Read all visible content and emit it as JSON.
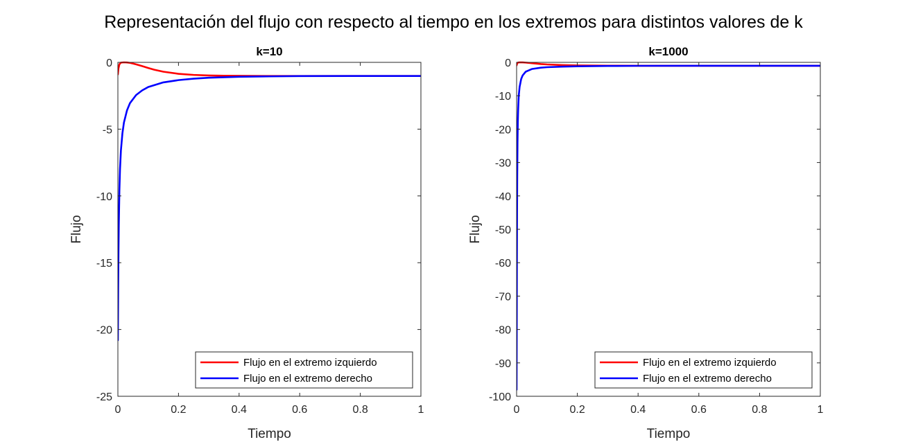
{
  "figure": {
    "suptitle": "Representación del flujo con respecto al tiempo en los extremos para distintos valores de k",
    "colors": {
      "background": "#ffffff",
      "axes": "#262626",
      "left_series": "#ff0000",
      "right_series": "#0000ff"
    }
  },
  "chart_data": [
    {
      "type": "line",
      "title": "k=10",
      "xlabel": "Tiempo",
      "ylabel": "Flujo",
      "xlim": [
        0,
        1
      ],
      "ylim": [
        -25,
        0
      ],
      "xticks": [
        0,
        0.2,
        0.4,
        0.6,
        0.8,
        1
      ],
      "xtick_labels": [
        "0",
        "0.2",
        "0.4",
        "0.6",
        "0.8",
        "1"
      ],
      "yticks": [
        -25,
        -20,
        -15,
        -10,
        -5,
        0
      ],
      "ytick_labels": [
        "-25",
        "-20",
        "-15",
        "-10",
        "-5",
        "0"
      ],
      "legend_position": "bottom-right",
      "series": [
        {
          "name": "Flujo en el extremo izquierdo",
          "color": "#ff0000",
          "x": [
            0,
            0.002,
            0.005,
            0.01,
            0.02,
            0.03,
            0.04,
            0.05,
            0.06,
            0.08,
            0.1,
            0.12,
            0.15,
            0.2,
            0.25,
            0.3,
            0.35,
            0.4,
            0.5,
            0.6,
            0.8,
            1
          ],
          "y": [
            -0.9,
            -0.45,
            -0.15,
            -0.02,
            0.0,
            -0.01,
            -0.04,
            -0.09,
            -0.15,
            -0.28,
            -0.42,
            -0.55,
            -0.7,
            -0.86,
            -0.94,
            -0.98,
            -1.0,
            -1.01,
            -1.02,
            -1.02,
            -1.02,
            -1.02
          ]
        },
        {
          "name": "Flujo en el extremo derecho",
          "color": "#0000ff",
          "x": [
            0,
            0.001,
            0.002,
            0.003,
            0.005,
            0.007,
            0.01,
            0.015,
            0.02,
            0.03,
            0.04,
            0.06,
            0.08,
            0.1,
            0.15,
            0.2,
            0.25,
            0.3,
            0.4,
            0.5,
            0.6,
            0.8,
            1
          ],
          "y": [
            -20.8,
            -17.0,
            -14.2,
            -12.2,
            -9.6,
            -8.0,
            -6.6,
            -5.3,
            -4.5,
            -3.6,
            -3.05,
            -2.45,
            -2.1,
            -1.85,
            -1.5,
            -1.33,
            -1.22,
            -1.15,
            -1.08,
            -1.05,
            -1.03,
            -1.02,
            -1.02
          ]
        }
      ]
    },
    {
      "type": "line",
      "title": "k=1000",
      "xlabel": "Tiempo",
      "ylabel": "Flujo",
      "xlim": [
        0,
        1
      ],
      "ylim": [
        -100,
        0
      ],
      "xticks": [
        0,
        0.2,
        0.4,
        0.6,
        0.8,
        1
      ],
      "xtick_labels": [
        "0",
        "0.2",
        "0.4",
        "0.6",
        "0.8",
        "1"
      ],
      "yticks": [
        -100,
        -90,
        -80,
        -70,
        -60,
        -50,
        -40,
        -30,
        -20,
        -10,
        0
      ],
      "ytick_labels": [
        "-100",
        "-90",
        "-80",
        "-70",
        "-60",
        "-50",
        "-40",
        "-30",
        "-20",
        "-10",
        "0"
      ],
      "legend_position": "bottom-right",
      "series": [
        {
          "name": "Flujo en el extremo izquierdo",
          "color": "#ff0000",
          "x": [
            0,
            0.002,
            0.005,
            0.01,
            0.02,
            0.03,
            0.05,
            0.08,
            0.1,
            0.15,
            0.2,
            0.3,
            0.4,
            0.5,
            0.6,
            0.8,
            1
          ],
          "y": [
            -0.9,
            -0.3,
            -0.05,
            0.0,
            -0.02,
            -0.08,
            -0.25,
            -0.5,
            -0.62,
            -0.82,
            -0.92,
            -1.0,
            -1.02,
            -1.02,
            -1.02,
            -1.02,
            -1.02
          ]
        },
        {
          "name": "Flujo en el extremo derecho",
          "color": "#0000ff",
          "x": [
            0,
            0.0005,
            0.001,
            0.0015,
            0.002,
            0.003,
            0.004,
            0.005,
            0.007,
            0.01,
            0.015,
            0.02,
            0.03,
            0.05,
            0.08,
            0.1,
            0.15,
            0.2,
            0.3,
            0.4,
            0.6,
            0.8,
            1
          ],
          "y": [
            -98.0,
            -80.0,
            -60.0,
            -45.0,
            -35.0,
            -24.0,
            -18.0,
            -14.5,
            -10.0,
            -7.3,
            -5.0,
            -3.9,
            -2.8,
            -2.0,
            -1.6,
            -1.45,
            -1.28,
            -1.18,
            -1.08,
            -1.04,
            -1.02,
            -1.02,
            -1.02
          ]
        }
      ]
    }
  ]
}
